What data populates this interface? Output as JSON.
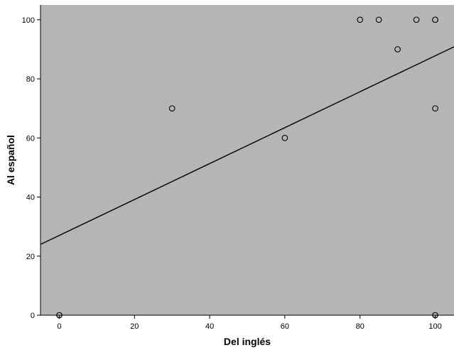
{
  "chart_data": {
    "type": "scatter",
    "title": "",
    "xlabel": "Del inglés",
    "ylabel": "Al español",
    "xlim": [
      -5,
      105
    ],
    "ylim": [
      0,
      105
    ],
    "x_ticks": [
      0,
      20,
      40,
      60,
      80,
      100
    ],
    "y_ticks": [
      0,
      20,
      40,
      60,
      80,
      100
    ],
    "grid": false,
    "legend": "none",
    "points": [
      {
        "x": 0,
        "y": 0
      },
      {
        "x": 30,
        "y": 70
      },
      {
        "x": 60,
        "y": 60
      },
      {
        "x": 80,
        "y": 100
      },
      {
        "x": 85,
        "y": 100
      },
      {
        "x": 90,
        "y": 90
      },
      {
        "x": 95,
        "y": 100
      },
      {
        "x": 100,
        "y": 100
      },
      {
        "x": 100,
        "y": 100
      },
      {
        "x": 100,
        "y": 70
      },
      {
        "x": 100,
        "y": 0
      }
    ],
    "fit_line": {
      "slope": 0.608,
      "intercept": 27.0
    },
    "colors": {
      "plot_background": "#b5b5b5",
      "marker_stroke": "#000000",
      "marker_fill": "#b5b5b5",
      "line": "#000000"
    }
  }
}
